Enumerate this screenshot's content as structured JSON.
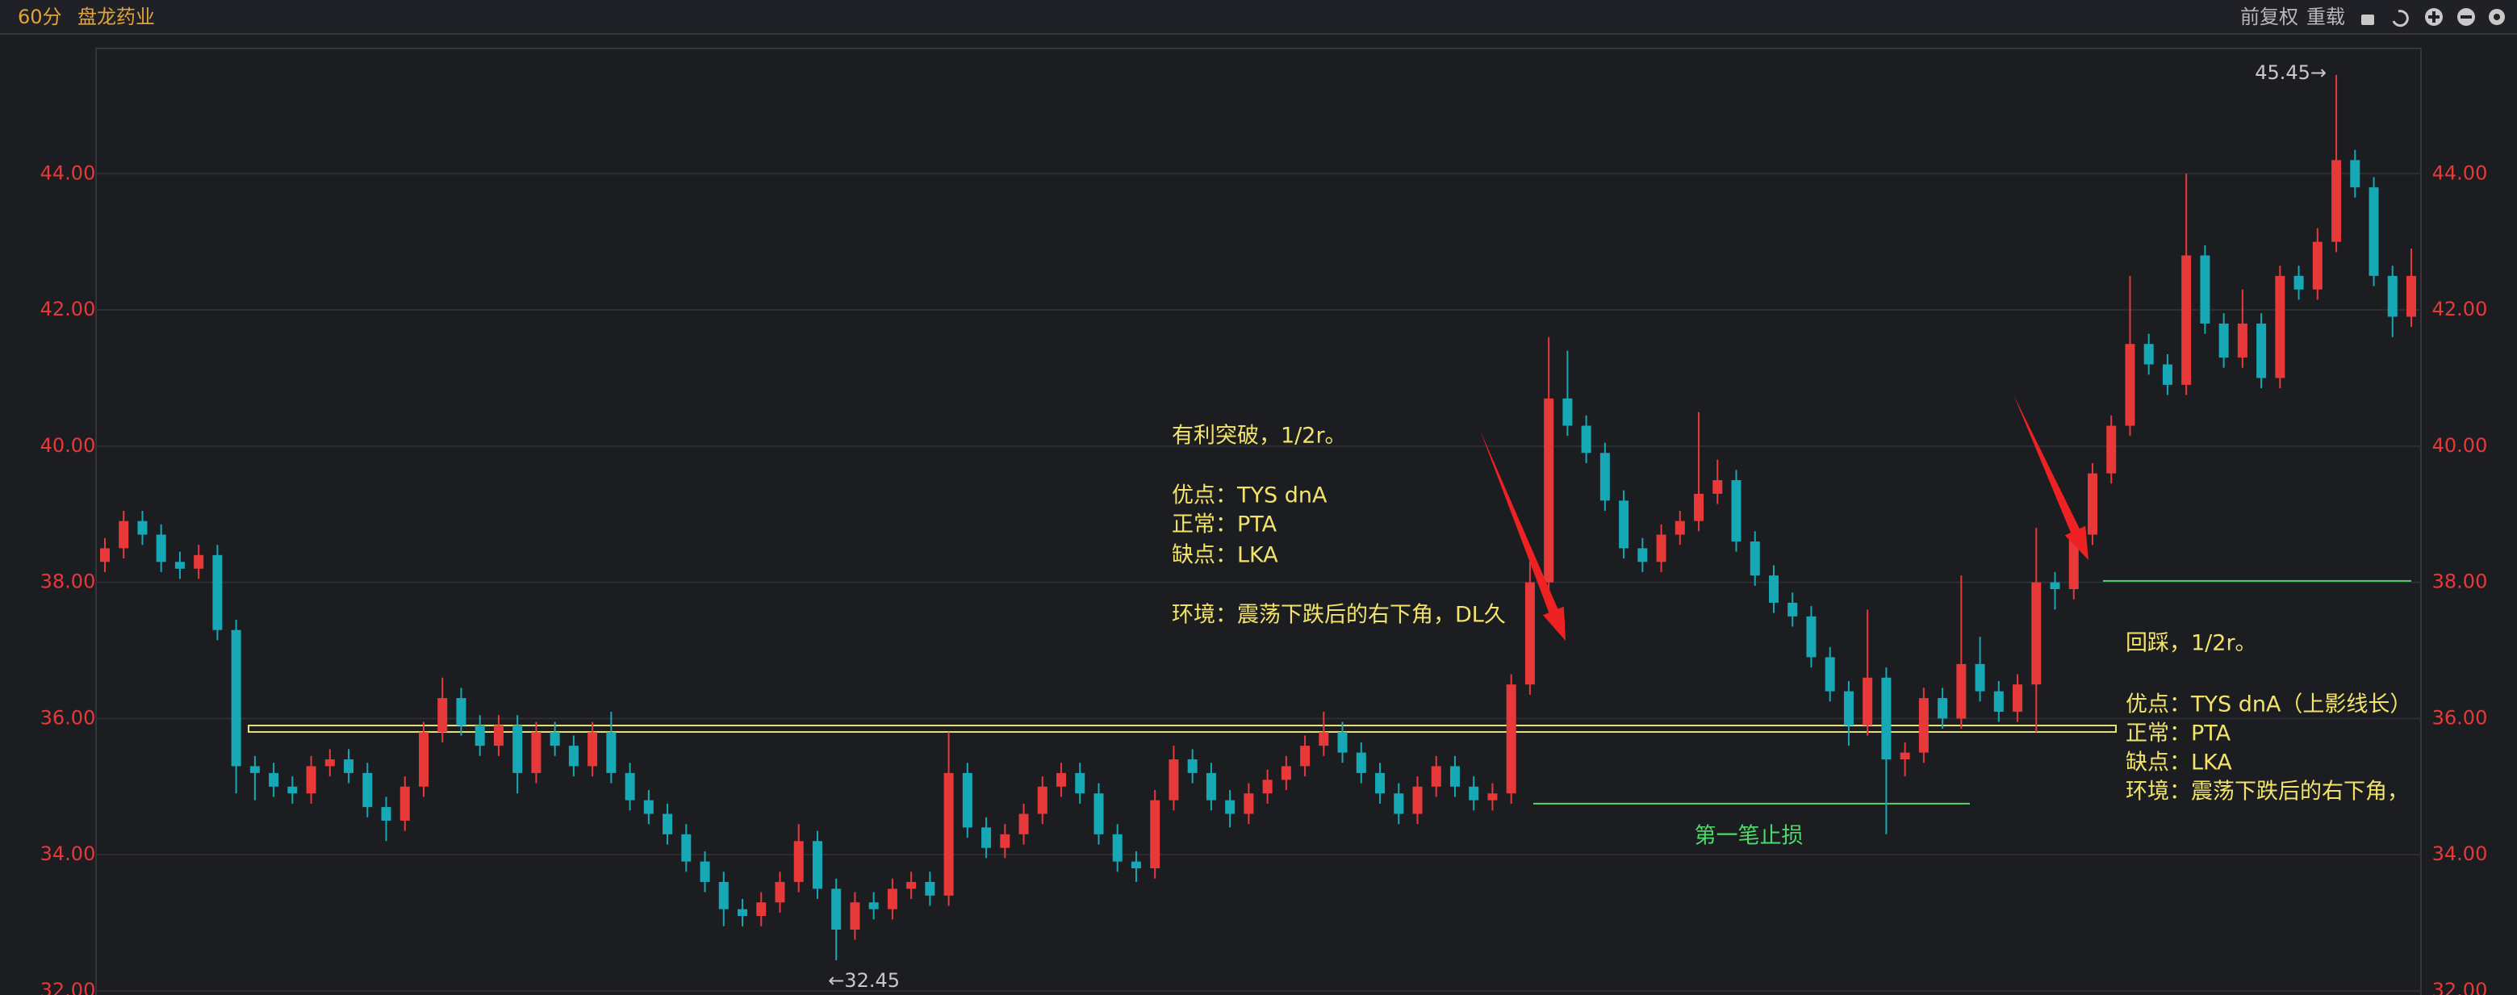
{
  "header": {
    "period": "60分",
    "name": "盘龙药业",
    "adjust": "前复权",
    "reload": "重载"
  },
  "chart_data": {
    "type": "candlestick",
    "up_color": "#e8393a",
    "down_color": "#17a8b6",
    "ylim": [
      31.94,
      45.84
    ],
    "yticks": [
      {
        "value": 32,
        "label": "32.00"
      },
      {
        "value": 34,
        "label": "34.00"
      },
      {
        "value": 36,
        "label": "36.00"
      },
      {
        "value": 38,
        "label": "38.00"
      },
      {
        "value": 40,
        "label": "40.00"
      },
      {
        "value": 42,
        "label": "42.00"
      },
      {
        "value": 44,
        "label": "44.00"
      }
    ],
    "grid": true,
    "open": [
      38.3,
      38.5,
      38.9,
      38.7,
      38.3,
      38.2,
      38.4,
      37.3,
      35.3,
      35.2,
      35.0,
      34.9,
      35.3,
      35.4,
      35.2,
      34.7,
      34.5,
      35.0,
      35.8,
      36.3,
      35.9,
      35.6,
      35.9,
      35.2,
      35.8,
      35.6,
      35.3,
      35.8,
      35.2,
      34.8,
      34.6,
      34.3,
      33.9,
      33.6,
      33.2,
      33.1,
      33.3,
      33.6,
      34.2,
      33.5,
      32.9,
      33.3,
      33.2,
      33.5,
      33.6,
      33.4,
      35.2,
      34.4,
      34.1,
      34.3,
      34.6,
      35.0,
      35.2,
      34.9,
      34.3,
      33.9,
      33.8,
      34.8,
      35.4,
      35.2,
      34.8,
      34.6,
      34.9,
      35.1,
      35.3,
      35.6,
      35.8,
      35.5,
      35.2,
      34.9,
      34.6,
      35.0,
      35.3,
      35.0,
      34.8,
      34.9,
      36.5,
      38.0,
      40.7,
      40.3,
      39.9,
      39.2,
      38.5,
      38.3,
      38.7,
      38.9,
      39.3,
      39.5,
      38.6,
      38.1,
      37.7,
      37.5,
      36.9,
      36.4,
      35.9,
      36.6,
      35.4,
      35.5,
      36.3,
      36.0,
      36.8,
      36.4,
      36.1,
      36.5,
      38.0,
      37.9,
      38.7,
      39.6,
      40.3,
      41.5,
      41.2,
      40.9,
      42.8,
      41.8,
      41.3,
      41.8,
      41.0,
      42.5,
      42.3,
      43.0,
      44.2,
      43.8,
      42.5,
      41.9
    ],
    "high": [
      38.65,
      39.05,
      39.05,
      38.85,
      38.45,
      38.55,
      38.55,
      37.45,
      35.45,
      35.35,
      35.15,
      35.45,
      35.55,
      35.55,
      35.35,
      34.85,
      35.15,
      35.95,
      36.6,
      36.45,
      36.05,
      36.05,
      36.05,
      35.95,
      35.95,
      35.75,
      35.95,
      36.1,
      35.35,
      34.95,
      34.75,
      34.45,
      34.05,
      33.75,
      33.35,
      33.45,
      33.75,
      34.45,
      34.35,
      33.65,
      33.45,
      33.45,
      33.65,
      33.75,
      33.75,
      35.8,
      35.35,
      34.55,
      34.45,
      34.75,
      35.15,
      35.35,
      35.35,
      35.05,
      34.45,
      34.05,
      34.95,
      35.6,
      35.55,
      35.35,
      34.95,
      35.05,
      35.25,
      35.45,
      35.75,
      36.1,
      35.95,
      35.65,
      35.35,
      35.05,
      35.15,
      35.45,
      35.45,
      35.15,
      35.05,
      36.65,
      38.3,
      41.6,
      41.4,
      40.45,
      40.05,
      39.35,
      38.65,
      38.85,
      39.05,
      40.5,
      39.8,
      39.65,
      38.75,
      38.25,
      37.85,
      37.65,
      37.05,
      36.55,
      37.6,
      36.75,
      35.65,
      36.45,
      36.45,
      38.1,
      37.2,
      36.55,
      36.65,
      38.8,
      38.15,
      38.85,
      39.75,
      40.45,
      42.5,
      41.65,
      41.35,
      44.0,
      42.95,
      41.95,
      42.3,
      41.95,
      42.65,
      42.65,
      43.2,
      45.45,
      44.35,
      43.95,
      42.65,
      42.9
    ],
    "low": [
      38.15,
      38.35,
      38.55,
      38.15,
      38.05,
      38.05,
      37.15,
      34.9,
      34.8,
      34.85,
      34.75,
      34.75,
      35.15,
      35.05,
      34.55,
      34.2,
      34.35,
      34.85,
      35.65,
      35.75,
      35.45,
      35.45,
      34.9,
      35.05,
      35.45,
      35.15,
      35.15,
      35.05,
      34.65,
      34.45,
      34.15,
      33.75,
      33.45,
      32.95,
      32.95,
      32.95,
      33.15,
      33.45,
      33.35,
      32.45,
      32.75,
      33.05,
      33.05,
      33.35,
      33.25,
      33.25,
      34.25,
      33.95,
      33.95,
      34.15,
      34.45,
      34.85,
      34.75,
      34.15,
      33.75,
      33.6,
      33.65,
      34.65,
      35.05,
      34.65,
      34.4,
      34.45,
      34.75,
      34.95,
      35.15,
      35.45,
      35.35,
      35.05,
      34.75,
      34.45,
      34.45,
      34.85,
      34.85,
      34.65,
      34.65,
      34.75,
      36.35,
      37.85,
      40.15,
      39.75,
      39.05,
      38.35,
      38.15,
      38.15,
      38.55,
      38.75,
      39.15,
      38.45,
      37.95,
      37.55,
      37.35,
      36.75,
      36.25,
      35.6,
      35.75,
      34.3,
      35.15,
      35.35,
      35.85,
      35.85,
      36.25,
      35.95,
      35.95,
      35.8,
      37.6,
      37.75,
      38.55,
      39.45,
      40.15,
      41.05,
      40.75,
      40.75,
      41.65,
      41.15,
      41.15,
      40.85,
      40.85,
      42.15,
      42.15,
      42.85,
      43.65,
      42.35,
      41.6,
      41.75
    ],
    "close": [
      38.5,
      38.9,
      38.7,
      38.3,
      38.2,
      38.4,
      37.3,
      35.3,
      35.2,
      35.0,
      34.9,
      35.3,
      35.4,
      35.2,
      34.7,
      34.5,
      35.0,
      35.8,
      36.3,
      35.9,
      35.6,
      35.9,
      35.2,
      35.8,
      35.6,
      35.3,
      35.8,
      35.2,
      34.8,
      34.6,
      34.3,
      33.9,
      33.6,
      33.2,
      33.1,
      33.3,
      33.6,
      34.2,
      33.5,
      32.9,
      33.3,
      33.2,
      33.5,
      33.6,
      33.4,
      35.2,
      34.4,
      34.1,
      34.3,
      34.6,
      35.0,
      35.2,
      34.9,
      34.3,
      33.9,
      33.8,
      34.8,
      35.4,
      35.2,
      34.8,
      34.6,
      34.9,
      35.1,
      35.3,
      35.6,
      35.8,
      35.5,
      35.2,
      34.9,
      34.6,
      35.0,
      35.3,
      35.0,
      34.8,
      34.9,
      36.5,
      38.0,
      40.7,
      40.3,
      39.9,
      39.2,
      38.5,
      38.3,
      38.7,
      38.9,
      39.3,
      39.5,
      38.6,
      38.1,
      37.7,
      37.5,
      36.9,
      36.4,
      35.9,
      36.6,
      35.4,
      35.5,
      36.3,
      36.0,
      36.8,
      36.4,
      36.1,
      36.5,
      38.0,
      37.9,
      38.7,
      39.6,
      40.3,
      41.5,
      41.2,
      40.9,
      42.8,
      41.8,
      41.3,
      41.8,
      41.0,
      42.5,
      42.3,
      43.0,
      44.2,
      43.8,
      42.5,
      41.9,
      42.5
    ],
    "high_label": "45.45→",
    "low_label": "←32.45",
    "levels": [
      {
        "value": 35.85,
        "color": "#e8e07a"
      },
      {
        "value": 34.75,
        "color": "#4fd86a"
      },
      {
        "value": 38.02,
        "color": "#4fd86a"
      }
    ],
    "annotations": [
      {
        "lines": [
          "有利突破，1/2r。",
          "优点：TYS dnA",
          "正常：PTA",
          "缺点：LKA",
          "环境：震荡下跌后的右下角，DL久"
        ],
        "color": "#f3e36b"
      },
      {
        "lines": [
          "回踩，1/2r。",
          "优点：TYS dnA（上影线长）",
          "正常：PTA",
          "缺点：LKA",
          "环境：震荡下跌后的右下角，"
        ],
        "color": "#f3e36b"
      }
    ],
    "stop_label": "第一笔止损",
    "stop_color": "#4fd86a"
  }
}
